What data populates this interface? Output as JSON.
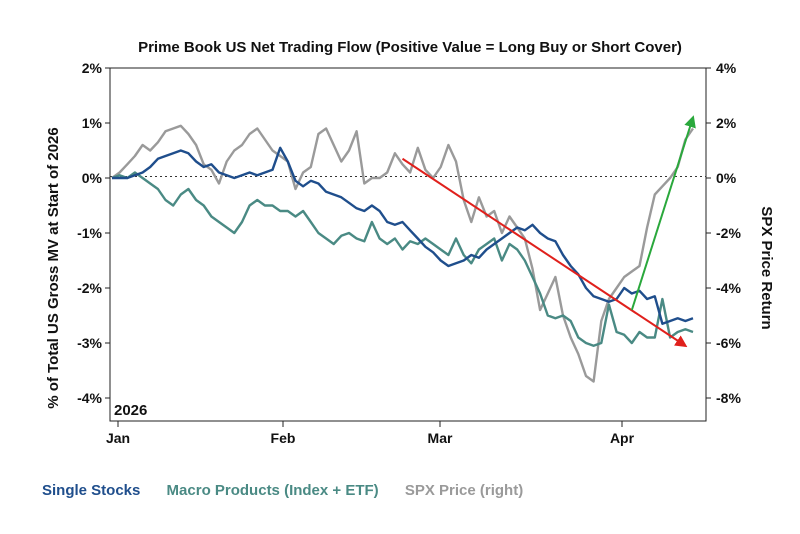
{
  "chart_data": {
    "type": "line",
    "title": "Prime Book US Net Trading Flow (Positive Value = Long Buy or Short Cover)",
    "ylabel": "% of Total US Gross MV at Start of 2026",
    "y2label": "SPX Price Return",
    "ylim": [
      -4.5,
      2
    ],
    "y2lim": [
      -9,
      4
    ],
    "yticks": [
      "2%",
      "1%",
      "0%",
      "-1%",
      "-2%",
      "-3%",
      "-4%"
    ],
    "y2ticks": [
      "4%",
      "2%",
      "0%",
      "-2%",
      "-4%",
      "-6%",
      "-8%"
    ],
    "xticks": [
      "Jan",
      "Feb",
      "Mar",
      "Apr"
    ],
    "year_label": "2026",
    "zero_line": "dotted",
    "series": [
      {
        "name": "Single Stocks",
        "axis": "left",
        "color": "#1f4e8c",
        "values": [
          0.0,
          0.0,
          0.0,
          0.05,
          0.1,
          0.2,
          0.35,
          0.4,
          0.45,
          0.5,
          0.45,
          0.3,
          0.2,
          0.25,
          0.1,
          0.05,
          0.0,
          0.05,
          0.1,
          0.05,
          0.1,
          0.15,
          0.55,
          0.3,
          -0.05,
          -0.15,
          -0.05,
          -0.1,
          -0.25,
          -0.3,
          -0.35,
          -0.45,
          -0.55,
          -0.6,
          -0.5,
          -0.6,
          -0.8,
          -0.85,
          -0.8,
          -0.95,
          -1.1,
          -1.25,
          -1.35,
          -1.5,
          -1.6,
          -1.55,
          -1.5,
          -1.4,
          -1.45,
          -1.3,
          -1.2,
          -1.1,
          -1.0,
          -0.9,
          -0.95,
          -0.85,
          -1.0,
          -1.1,
          -1.15,
          -1.4,
          -1.6,
          -1.75,
          -2.0,
          -2.15,
          -2.2,
          -2.25,
          -2.2,
          -2.0,
          -2.1,
          -2.05,
          -2.2,
          -2.15,
          -2.65,
          -2.6,
          -2.55,
          -2.6,
          -2.55
        ]
      },
      {
        "name": "Macro Products (Index + ETF)",
        "axis": "left",
        "color": "#4a8a84",
        "values": [
          0.0,
          0.05,
          0.0,
          0.1,
          0.0,
          -0.1,
          -0.2,
          -0.4,
          -0.5,
          -0.3,
          -0.2,
          -0.4,
          -0.5,
          -0.7,
          -0.8,
          -0.9,
          -1.0,
          -0.8,
          -0.5,
          -0.4,
          -0.5,
          -0.5,
          -0.6,
          -0.6,
          -0.7,
          -0.6,
          -0.8,
          -1.0,
          -1.1,
          -1.2,
          -1.05,
          -1.0,
          -1.1,
          -1.15,
          -0.8,
          -1.1,
          -1.2,
          -1.1,
          -1.3,
          -1.15,
          -1.2,
          -1.1,
          -1.2,
          -1.3,
          -1.4,
          -1.1,
          -1.4,
          -1.55,
          -1.3,
          -1.2,
          -1.1,
          -1.5,
          -1.2,
          -1.3,
          -1.5,
          -1.8,
          -2.1,
          -2.5,
          -2.55,
          -2.5,
          -2.6,
          -2.9,
          -3.0,
          -3.05,
          -3.0,
          -2.3,
          -2.8,
          -2.85,
          -3.0,
          -2.8,
          -2.9,
          -2.9,
          -2.2,
          -2.9,
          -2.8,
          -2.75,
          -2.8
        ]
      },
      {
        "name": "SPX Price (right)",
        "axis": "right",
        "color": "#9a9a9a",
        "values": [
          0.0,
          0.2,
          0.5,
          0.8,
          1.2,
          1.0,
          1.3,
          1.7,
          1.8,
          1.9,
          1.6,
          1.2,
          0.5,
          0.3,
          -0.2,
          0.6,
          1.0,
          1.2,
          1.6,
          1.8,
          1.4,
          1.0,
          0.8,
          0.6,
          -0.4,
          0.2,
          0.4,
          1.6,
          1.8,
          1.2,
          0.6,
          1.0,
          1.7,
          -0.2,
          0.0,
          0.0,
          0.2,
          0.9,
          0.5,
          0.2,
          1.1,
          0.3,
          0.0,
          0.4,
          1.2,
          0.6,
          -0.8,
          -1.6,
          -0.7,
          -1.4,
          -1.2,
          -2.0,
          -1.4,
          -1.8,
          -2.2,
          -3.3,
          -4.8,
          -4.2,
          -3.6,
          -5.0,
          -5.8,
          -6.4,
          -7.2,
          -7.4,
          -5.2,
          -4.4,
          -4.0,
          -3.6,
          -3.4,
          -3.2,
          -1.8,
          -0.6,
          -0.3,
          0.0,
          0.4,
          1.4,
          1.8
        ]
      }
    ],
    "annotations": [
      {
        "type": "arrow",
        "color": "#e0201c",
        "from": {
          "x": 38,
          "y": 0.35
        },
        "to": {
          "x": 75,
          "y": -3.05
        }
      },
      {
        "type": "arrow",
        "color": "#2aa83c",
        "from": {
          "x": 68,
          "y": -2.4
        },
        "to": {
          "x": 76,
          "y": 1.1
        }
      }
    ],
    "legend_position": "bottom-left"
  }
}
